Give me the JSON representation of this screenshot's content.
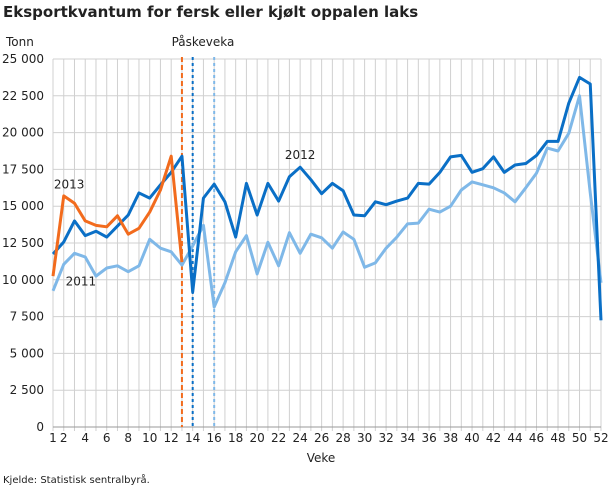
{
  "chart_data": {
    "type": "line",
    "title": "Eksportkvantum for fersk eller kjølt oppalen laks",
    "ylabel": "Tonn",
    "xlabel": "Veke",
    "source": "Kjelde: Statistisk sentralbyrå.",
    "ylim": [
      0,
      25000
    ],
    "xlim": [
      1,
      52
    ],
    "grid": true,
    "yticks": [
      0,
      2500,
      5000,
      7500,
      10000,
      12500,
      15000,
      17500,
      20000,
      22500,
      25000
    ],
    "ytick_labels": [
      "0",
      "2 500",
      "5 000",
      "7 500",
      "10 000",
      "12 500",
      "15 000",
      "17 500",
      "20 000",
      "22 500",
      "25 000"
    ],
    "xticks": [
      1,
      2,
      4,
      6,
      8,
      10,
      12,
      14,
      16,
      18,
      20,
      22,
      24,
      26,
      28,
      30,
      32,
      34,
      36,
      38,
      40,
      42,
      44,
      46,
      48,
      50,
      52
    ],
    "annotation": "Påskeveka",
    "easter_weeks": [
      {
        "series": "2013",
        "week": 13,
        "color": "#f26b1d"
      },
      {
        "series": "2012",
        "week": 14,
        "color": "#0a6fc6"
      },
      {
        "series": "2011",
        "week": 16,
        "color": "#7fb8e8"
      }
    ],
    "series": [
      {
        "name": "2011",
        "color": "#7fb8e8",
        "label_week": 3.6,
        "label_value": 9600,
        "values": [
          9250,
          11050,
          11800,
          11550,
          10250,
          10800,
          10950,
          10550,
          10950,
          12750,
          12150,
          11900,
          11000,
          12300,
          13700,
          8150,
          9800,
          11900,
          13000,
          10400,
          12550,
          10950,
          13200,
          11800,
          13100,
          12850,
          12150,
          13250,
          12750,
          10850,
          11150,
          12150,
          12900,
          13800,
          13850,
          14800,
          14600,
          15000,
          16100,
          16650,
          16450,
          16250,
          15900,
          15300,
          16250,
          17250,
          18950,
          18750,
          19950,
          22500,
          15900,
          9800
        ]
      },
      {
        "name": "2012",
        "color": "#0a6fc6",
        "label_week": 24,
        "label_value": 18200,
        "values": [
          11750,
          12570,
          14000,
          13000,
          13300,
          12900,
          13650,
          14400,
          15900,
          15550,
          16450,
          17300,
          18400,
          9170,
          15550,
          16500,
          15300,
          12900,
          16550,
          14400,
          16550,
          15350,
          17000,
          17650,
          16800,
          15850,
          16550,
          16050,
          14400,
          14350,
          15300,
          15100,
          15350,
          15550,
          16550,
          16500,
          17300,
          18350,
          18450,
          17300,
          17550,
          18350,
          17300,
          17800,
          17900,
          18450,
          19400,
          19400,
          22000,
          23750,
          23300,
          7250
        ]
      },
      {
        "name": "2013",
        "color": "#f26b1d",
        "label_week": 2.5,
        "label_value": 16200,
        "values": [
          10250,
          15700,
          15200,
          14000,
          13700,
          13600,
          14350,
          13100,
          13500,
          14600,
          16100,
          18400,
          11200
        ]
      }
    ]
  }
}
